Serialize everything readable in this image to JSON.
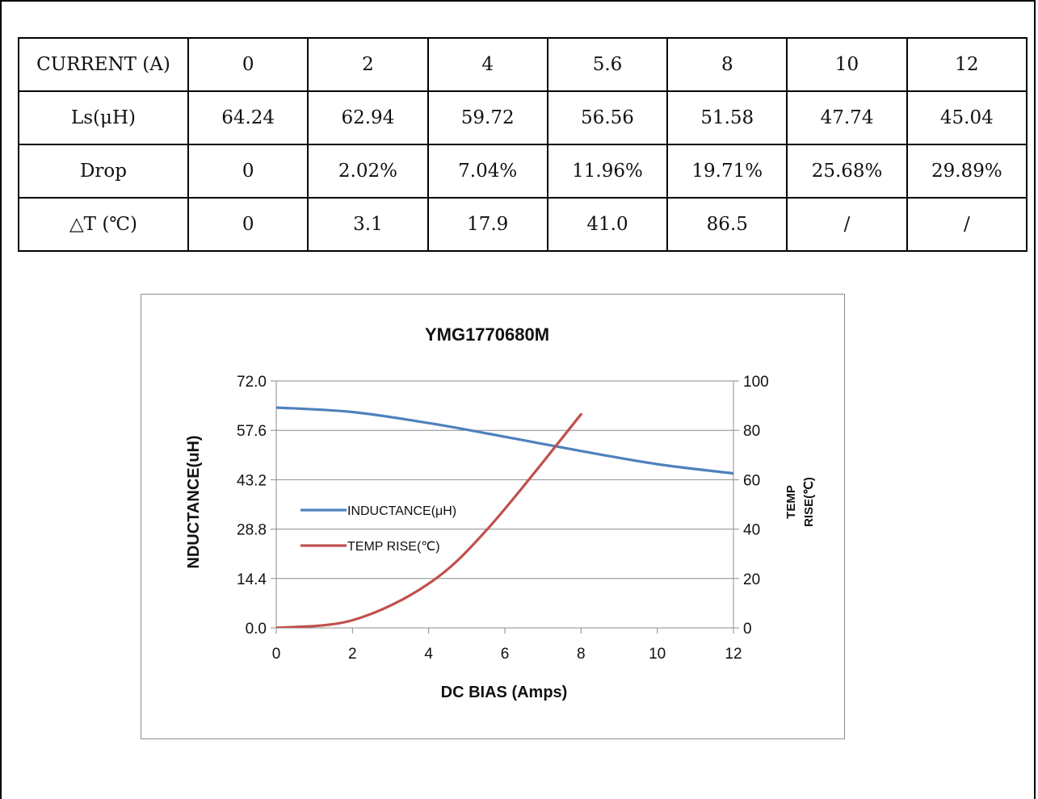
{
  "table": {
    "rows": [
      {
        "label": "CURRENT (A)",
        "cells": [
          "0",
          "2",
          "4",
          "5.6",
          "8",
          "10",
          "12"
        ]
      },
      {
        "label": "Ls(μH)",
        "cells": [
          "64.24",
          "62.94",
          "59.72",
          "56.56",
          "51.58",
          "47.74",
          "45.04"
        ]
      },
      {
        "label": "Drop",
        "cells": [
          "0",
          "2.02%",
          "7.04%",
          "11.96%",
          "19.71%",
          "25.68%",
          "29.89%"
        ]
      },
      {
        "label": "△T (℃)",
        "cells": [
          "0",
          "3.1",
          "17.9",
          "41.0",
          "86.5",
          "/",
          "/"
        ]
      }
    ]
  },
  "chart_data": {
    "type": "line",
    "title": "YMG1770680M",
    "xlabel": "DC BIAS (Amps)",
    "ylabel_left": "NDUCTANCE(uH)",
    "ylabel_right": "TEMP RISE(℃)",
    "xlim": [
      0,
      12
    ],
    "ylim_left": [
      0,
      72
    ],
    "ylim_right": [
      0,
      100
    ],
    "x_ticks": [
      "0",
      "2",
      "4",
      "6",
      "8",
      "10",
      "12"
    ],
    "y_ticks_left": [
      "0.0",
      "14.4",
      "28.8",
      "43.2",
      "57.6",
      "72.0"
    ],
    "y_ticks_right": [
      "0",
      "20",
      "40",
      "60",
      "80",
      "100"
    ],
    "grid": true,
    "legend_position": "left",
    "series": [
      {
        "name": "INDUCTANCE(μH)",
        "axis": "left",
        "color": "#4f81bd",
        "x": [
          0,
          2,
          4,
          5.6,
          8,
          10,
          12
        ],
        "y": [
          64.24,
          62.94,
          59.72,
          56.56,
          51.58,
          47.74,
          45.04
        ]
      },
      {
        "name": "TEMP RISE(℃)",
        "axis": "right",
        "color": "#c0504d",
        "x": [
          0,
          2,
          4,
          5.6,
          8
        ],
        "y": [
          0,
          3.1,
          17.9,
          41.0,
          86.5
        ]
      }
    ]
  }
}
